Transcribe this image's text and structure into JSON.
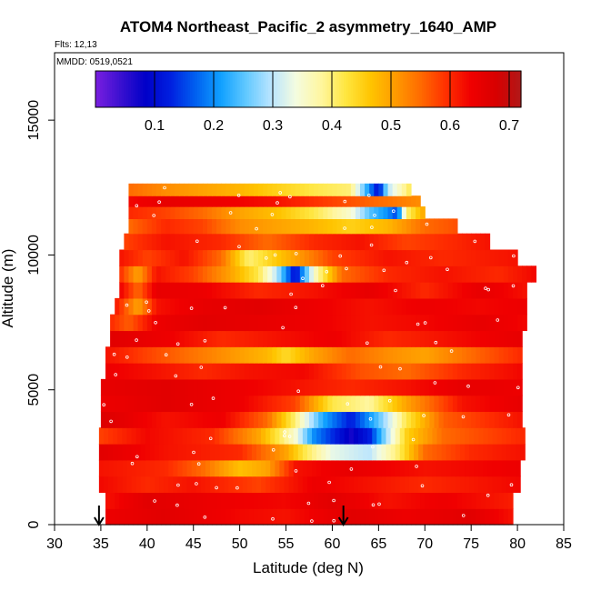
{
  "chart_data": {
    "type": "heatmap",
    "title": "ATOM4 Northeast_Pacific_2 asymmetry_1640_AMP",
    "flights_label": "Flts: 12,13",
    "date_label": "MMDD: 0519,0521",
    "xlabel": "Latitude (deg N)",
    "ylabel": "Altitude (m)",
    "xlim": [
      30,
      85
    ],
    "ylim": [
      0,
      17500
    ],
    "xticks": [
      "30",
      "35",
      "40",
      "45",
      "50",
      "55",
      "60",
      "65",
      "70",
      "75",
      "80",
      "85"
    ],
    "yticks": [
      "0",
      "5000",
      "10000",
      "15000"
    ],
    "colorbar": {
      "range": [
        0.0,
        0.72
      ],
      "ticks": [
        "0.1",
        "0.2",
        "0.3",
        "0.4",
        "0.5",
        "0.6",
        "0.7"
      ],
      "colors": [
        "#7a1fe0",
        "#3a10d0",
        "#0000c8",
        "#0020e0",
        "#0060f0",
        "#10a0ff",
        "#60c8ff",
        "#b8e4ff",
        "#f4fce0",
        "#fff6a0",
        "#ffe640",
        "#ffc400",
        "#ff9a00",
        "#ff6a00",
        "#ff3000",
        "#f00000",
        "#d80000",
        "#b01818"
      ]
    },
    "arrows_latitude": [
      34.8,
      61.2
    ],
    "rows": [
      {
        "alt": 300,
        "x0": 35.5,
        "x1": 79.5,
        "profile": [
          [
            35.5,
            0.64
          ],
          [
            42,
            0.66
          ],
          [
            50,
            0.63
          ],
          [
            55,
            0.62
          ],
          [
            62,
            0.66
          ],
          [
            68,
            0.64
          ],
          [
            75,
            0.66
          ],
          [
            79.5,
            0.62
          ]
        ]
      },
      {
        "alt": 900,
        "x0": 35.5,
        "x1": 79.5,
        "profile": [
          [
            35.5,
            0.62
          ],
          [
            40,
            0.66
          ],
          [
            48,
            0.64
          ],
          [
            55,
            0.63
          ],
          [
            60,
            0.66
          ],
          [
            66,
            0.62
          ],
          [
            72,
            0.64
          ],
          [
            79.5,
            0.61
          ]
        ]
      },
      {
        "alt": 1500,
        "x0": 34.8,
        "x1": 80.0,
        "profile": [
          [
            34.8,
            0.63
          ],
          [
            40,
            0.6
          ],
          [
            45,
            0.62
          ],
          [
            52,
            0.58
          ],
          [
            58,
            0.64
          ],
          [
            64,
            0.62
          ],
          [
            70,
            0.6
          ],
          [
            80,
            0.63
          ]
        ]
      },
      {
        "alt": 2100,
        "x0": 34.8,
        "x1": 80.0,
        "profile": [
          [
            34.8,
            0.62
          ],
          [
            42,
            0.6
          ],
          [
            46,
            0.55
          ],
          [
            50,
            0.47
          ],
          [
            53,
            0.5
          ],
          [
            56,
            0.62
          ],
          [
            62,
            0.65
          ],
          [
            70,
            0.62
          ],
          [
            80,
            0.64
          ]
        ]
      },
      {
        "alt": 2700,
        "x0": 34.8,
        "x1": 80.5,
        "profile": [
          [
            34.8,
            0.66
          ],
          [
            42,
            0.62
          ],
          [
            50,
            0.6
          ],
          [
            55,
            0.5
          ],
          [
            57,
            0.42
          ],
          [
            60,
            0.33
          ],
          [
            64,
            0.3
          ],
          [
            67,
            0.4
          ],
          [
            70,
            0.55
          ],
          [
            75,
            0.6
          ],
          [
            80.5,
            0.62
          ]
        ]
      },
      {
        "alt": 3300,
        "x0": 34.8,
        "x1": 80.5,
        "profile": [
          [
            34.8,
            0.58
          ],
          [
            40,
            0.63
          ],
          [
            47,
            0.6
          ],
          [
            52,
            0.5
          ],
          [
            56,
            0.35
          ],
          [
            58,
            0.2
          ],
          [
            62,
            0.07
          ],
          [
            64,
            0.12
          ],
          [
            66,
            0.3
          ],
          [
            68,
            0.45
          ],
          [
            72,
            0.55
          ],
          [
            80.5,
            0.6
          ]
        ]
      },
      {
        "alt": 3900,
        "x0": 35.0,
        "x1": 80.5,
        "profile": [
          [
            35.0,
            0.67
          ],
          [
            42,
            0.62
          ],
          [
            48,
            0.64
          ],
          [
            53,
            0.55
          ],
          [
            56,
            0.4
          ],
          [
            59,
            0.22
          ],
          [
            62,
            0.12
          ],
          [
            65,
            0.25
          ],
          [
            68,
            0.42
          ],
          [
            72,
            0.56
          ],
          [
            80.5,
            0.62
          ]
        ]
      },
      {
        "alt": 4500,
        "x0": 35.0,
        "x1": 80.5,
        "profile": [
          [
            35.0,
            0.64
          ],
          [
            42,
            0.66
          ],
          [
            50,
            0.64
          ],
          [
            56,
            0.58
          ],
          [
            60,
            0.42
          ],
          [
            64,
            0.38
          ],
          [
            68,
            0.5
          ],
          [
            74,
            0.62
          ],
          [
            80.5,
            0.65
          ]
        ]
      },
      {
        "alt": 5100,
        "x0": 35.0,
        "x1": 80.5,
        "profile": [
          [
            35.0,
            0.65
          ],
          [
            42,
            0.66
          ],
          [
            50,
            0.64
          ],
          [
            56,
            0.62
          ],
          [
            62,
            0.6
          ],
          [
            68,
            0.62
          ],
          [
            74,
            0.65
          ],
          [
            80.5,
            0.64
          ]
        ]
      },
      {
        "alt": 5700,
        "x0": 35.5,
        "x1": 80.5,
        "profile": [
          [
            35.5,
            0.64
          ],
          [
            41,
            0.62
          ],
          [
            46,
            0.6
          ],
          [
            51,
            0.62
          ],
          [
            57,
            0.63
          ],
          [
            63,
            0.57
          ],
          [
            68,
            0.55
          ],
          [
            74,
            0.6
          ],
          [
            80.5,
            0.63
          ]
        ]
      },
      {
        "alt": 6300,
        "x0": 35.5,
        "x1": 80.5,
        "profile": [
          [
            35.5,
            0.62
          ],
          [
            40,
            0.58
          ],
          [
            44,
            0.55
          ],
          [
            48,
            0.52
          ],
          [
            53,
            0.48
          ],
          [
            55,
            0.44
          ],
          [
            58,
            0.5
          ],
          [
            62,
            0.55
          ],
          [
            66,
            0.52
          ],
          [
            70,
            0.5
          ],
          [
            75,
            0.55
          ],
          [
            80.5,
            0.6
          ]
        ]
      },
      {
        "alt": 6900,
        "x0": 36.0,
        "x1": 80.5,
        "profile": [
          [
            36.0,
            0.66
          ],
          [
            42,
            0.64
          ],
          [
            48,
            0.6
          ],
          [
            54,
            0.62
          ],
          [
            60,
            0.64
          ],
          [
            66,
            0.6
          ],
          [
            72,
            0.62
          ],
          [
            80.5,
            0.65
          ]
        ]
      },
      {
        "alt": 7500,
        "x0": 36.0,
        "x1": 81.0,
        "profile": [
          [
            36.0,
            0.6
          ],
          [
            38,
            0.56
          ],
          [
            41,
            0.64
          ],
          [
            46,
            0.66
          ],
          [
            52,
            0.65
          ],
          [
            58,
            0.64
          ],
          [
            64,
            0.62
          ],
          [
            70,
            0.63
          ],
          [
            76,
            0.65
          ],
          [
            81,
            0.63
          ]
        ]
      },
      {
        "alt": 8100,
        "x0": 36.5,
        "x1": 81.0,
        "profile": [
          [
            36.5,
            0.62
          ],
          [
            39,
            0.5
          ],
          [
            41,
            0.62
          ],
          [
            46,
            0.65
          ],
          [
            52,
            0.66
          ],
          [
            58,
            0.64
          ],
          [
            64,
            0.62
          ],
          [
            70,
            0.64
          ],
          [
            76,
            0.63
          ],
          [
            81,
            0.64
          ]
        ]
      },
      {
        "alt": 8700,
        "x0": 37.0,
        "x1": 81.0,
        "profile": [
          [
            37.0,
            0.64
          ],
          [
            39,
            0.55
          ],
          [
            41,
            0.65
          ],
          [
            46,
            0.64
          ],
          [
            52,
            0.6
          ],
          [
            58,
            0.62
          ],
          [
            64,
            0.65
          ],
          [
            70,
            0.6
          ],
          [
            76,
            0.65
          ],
          [
            81,
            0.62
          ]
        ]
      },
      {
        "alt": 9300,
        "x0": 37.0,
        "x1": 82.0,
        "profile": [
          [
            37.0,
            0.6
          ],
          [
            39,
            0.5
          ],
          [
            41,
            0.62
          ],
          [
            45,
            0.58
          ],
          [
            49,
            0.5
          ],
          [
            52,
            0.42
          ],
          [
            54,
            0.3
          ],
          [
            56,
            0.1
          ],
          [
            58,
            0.35
          ],
          [
            61,
            0.55
          ],
          [
            66,
            0.6
          ],
          [
            72,
            0.62
          ],
          [
            78,
            0.6
          ],
          [
            82,
            0.63
          ]
        ]
      },
      {
        "alt": 9900,
        "x0": 37.0,
        "x1": 80.0,
        "profile": [
          [
            37.0,
            0.62
          ],
          [
            40,
            0.58
          ],
          [
            44,
            0.62
          ],
          [
            48,
            0.55
          ],
          [
            51,
            0.4
          ],
          [
            54,
            0.46
          ],
          [
            57,
            0.52
          ],
          [
            60,
            0.58
          ],
          [
            66,
            0.62
          ],
          [
            72,
            0.6
          ],
          [
            80,
            0.62
          ]
        ]
      },
      {
        "alt": 10500,
        "x0": 37.5,
        "x1": 77.0,
        "profile": [
          [
            37.5,
            0.58
          ],
          [
            42,
            0.62
          ],
          [
            48,
            0.6
          ],
          [
            53,
            0.55
          ],
          [
            58,
            0.6
          ],
          [
            63,
            0.62
          ],
          [
            68,
            0.58
          ],
          [
            73,
            0.6
          ],
          [
            77,
            0.62
          ]
        ]
      },
      {
        "alt": 11100,
        "x0": 38.0,
        "x1": 73.5,
        "profile": [
          [
            38.0,
            0.55
          ],
          [
            42,
            0.6
          ],
          [
            46,
            0.58
          ],
          [
            50,
            0.52
          ],
          [
            54,
            0.5
          ],
          [
            58,
            0.48
          ],
          [
            62,
            0.45
          ],
          [
            66,
            0.48
          ],
          [
            70,
            0.55
          ],
          [
            73.5,
            0.57
          ]
        ]
      },
      {
        "alt": 11600,
        "x0": 38.0,
        "x1": 70.0,
        "profile": [
          [
            38.0,
            0.6
          ],
          [
            42,
            0.58
          ],
          [
            46,
            0.55
          ],
          [
            50,
            0.5
          ],
          [
            54,
            0.47
          ],
          [
            58,
            0.42
          ],
          [
            62,
            0.35
          ],
          [
            64,
            0.25
          ],
          [
            66,
            0.2
          ],
          [
            67,
            0.15
          ],
          [
            68,
            0.4
          ],
          [
            70,
            0.5
          ]
        ]
      },
      {
        "alt": 12000,
        "x0": 38.0,
        "x1": 69.5,
        "profile": [
          [
            38.0,
            0.63
          ],
          [
            42,
            0.65
          ],
          [
            48,
            0.64
          ],
          [
            54,
            0.62
          ],
          [
            60,
            0.58
          ],
          [
            65,
            0.55
          ],
          [
            69.5,
            0.52
          ]
        ]
      },
      {
        "alt": 12400,
        "x0": 38.0,
        "x1": 68.5,
        "profile": [
          [
            38.0,
            0.55
          ],
          [
            42,
            0.52
          ],
          [
            46,
            0.5
          ],
          [
            50,
            0.48
          ],
          [
            54,
            0.45
          ],
          [
            58,
            0.42
          ],
          [
            62,
            0.4
          ],
          [
            64,
            0.2
          ],
          [
            65,
            0.1
          ],
          [
            66,
            0.3
          ],
          [
            68.5,
            0.42
          ]
        ]
      }
    ]
  }
}
